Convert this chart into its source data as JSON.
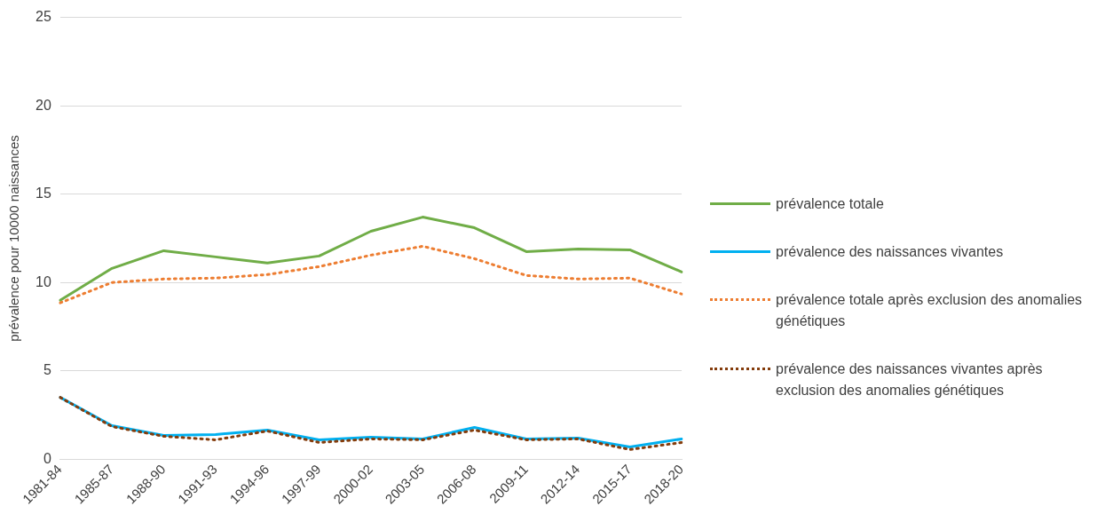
{
  "chart_data": {
    "type": "line",
    "ylabel": "prévalence pour 10000 naissances",
    "categories": [
      "1981-84",
      "1985-87",
      "1988-90",
      "1991-93",
      "1994-96",
      "1997-99",
      "2000-02",
      "2003-05",
      "2006-08",
      "2009-11",
      "2012-14",
      "2015-17",
      "2018-20"
    ],
    "ylim": [
      0,
      25
    ],
    "yticks": [
      0,
      5,
      10,
      15,
      20,
      25
    ],
    "grid": "y",
    "legend": "right",
    "marker": "none",
    "series": [
      {
        "name": "prévalence totale",
        "color": "#70ad47",
        "line_style": "solid",
        "values": [
          9.0,
          10.8,
          11.8,
          11.45,
          11.1,
          11.5,
          12.9,
          13.7,
          13.1,
          11.75,
          11.9,
          11.85,
          10.6
        ]
      },
      {
        "name": "prévalence des naissances vivantes",
        "color": "#00b0f0",
        "line_style": "solid",
        "values": [
          3.5,
          1.9,
          1.35,
          1.4,
          1.65,
          1.1,
          1.25,
          1.15,
          1.8,
          1.15,
          1.2,
          0.7,
          1.15
        ]
      },
      {
        "name": "prévalence totale après exclusion des anomalies génétiques",
        "color": "#ed7d31",
        "line_style": "dotted",
        "values": [
          8.85,
          10.0,
          10.2,
          10.25,
          10.45,
          10.9,
          11.55,
          12.05,
          11.35,
          10.4,
          10.2,
          10.25,
          9.35
        ]
      },
      {
        "name": "prévalence des naissances vivantes après exclusion des anomalies génétiques",
        "color": "#843c0c",
        "line_style": "dotted",
        "values": [
          3.5,
          1.85,
          1.3,
          1.1,
          1.6,
          0.95,
          1.15,
          1.1,
          1.65,
          1.1,
          1.15,
          0.55,
          0.95
        ]
      }
    ]
  }
}
